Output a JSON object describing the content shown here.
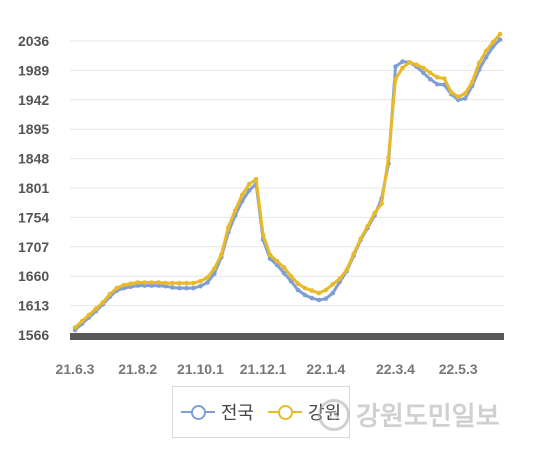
{
  "chart_data": {
    "type": "line",
    "title": "",
    "xlabel": "",
    "ylabel": "",
    "ylim": [
      1566,
      2050
    ],
    "y_ticks": [
      1566,
      1613,
      1660,
      1707,
      1754,
      1801,
      1848,
      1895,
      1942,
      1989,
      2036
    ],
    "x_tick_labels": [
      "21.6.3",
      "21.8.2",
      "21.10.1",
      "21.12.1",
      "22.1.4",
      "22.3.4",
      "22.5.3"
    ],
    "x_tick_index": [
      0,
      9,
      18,
      27,
      36,
      46,
      55
    ],
    "grid": "horizontal",
    "legend_position": "bottom",
    "series": [
      {
        "name": "전국",
        "color": "#7f9fd4",
        "values": [
          1574,
          1584,
          1594,
          1604,
          1615,
          1627,
          1637,
          1641,
          1643,
          1645,
          1645,
          1645,
          1645,
          1644,
          1642,
          1641,
          1641,
          1641,
          1644,
          1650,
          1664,
          1690,
          1730,
          1757,
          1780,
          1797,
          1808,
          1718,
          1688,
          1678,
          1665,
          1652,
          1638,
          1630,
          1625,
          1622,
          1624,
          1633,
          1651,
          1668,
          1693,
          1718,
          1737,
          1757,
          1784,
          1840,
          1995,
          2003,
          2002,
          1995,
          1985,
          1975,
          1967,
          1966,
          1951,
          1942,
          1944,
          1964,
          1990,
          2010,
          2027,
          2038
        ]
      },
      {
        "name": "강원",
        "color": "#e8b928",
        "values": [
          1578,
          1588,
          1598,
          1608,
          1618,
          1631,
          1641,
          1646,
          1648,
          1650,
          1650,
          1650,
          1650,
          1649,
          1649,
          1649,
          1649,
          1649,
          1652,
          1658,
          1672,
          1694,
          1738,
          1765,
          1790,
          1807,
          1815,
          1726,
          1694,
          1684,
          1674,
          1660,
          1648,
          1641,
          1637,
          1633,
          1638,
          1647,
          1656,
          1670,
          1696,
          1720,
          1740,
          1761,
          1776,
          1850,
          1975,
          1993,
          2002,
          1998,
          1993,
          1985,
          1978,
          1976,
          1954,
          1947,
          1952,
          1970,
          2001,
          2020,
          2034,
          2047
        ]
      }
    ]
  },
  "watermark": {
    "logo_text": "G",
    "text": "강원도민일보"
  }
}
